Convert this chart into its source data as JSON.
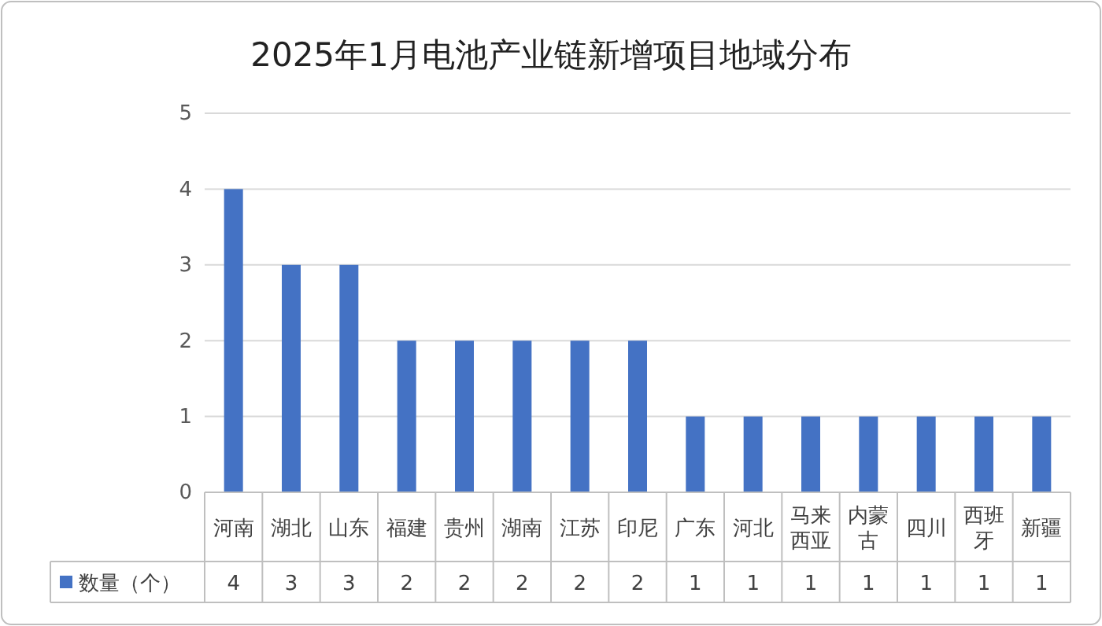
{
  "chart_data": {
    "type": "bar",
    "title": "2025年1月电池产业链新增项目地域分布",
    "categories": [
      "河南",
      "湖北",
      "山东",
      "福建",
      "贵州",
      "湖南",
      "江苏",
      "印尼",
      "广东",
      "河北",
      "马来西亚",
      "内蒙古",
      "四川",
      "西班牙",
      "新疆"
    ],
    "series": [
      {
        "name": "数量（个）",
        "color": "#4472c4",
        "values": [
          4,
          3,
          3,
          2,
          2,
          2,
          2,
          2,
          1,
          1,
          1,
          1,
          1,
          1,
          1
        ]
      }
    ],
    "ylim": [
      0,
      5
    ],
    "yticks": [
      0,
      1,
      2,
      3,
      4,
      5
    ],
    "grid": "y",
    "legend": "bottom left",
    "data_labels": true
  }
}
